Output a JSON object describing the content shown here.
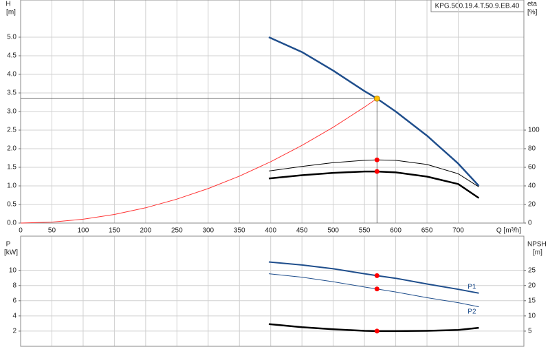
{
  "chart_data": [
    {
      "type": "line",
      "title": "KPG.500.19.4.T.50.9.EB.40",
      "ylabel": "H",
      "yunit": "[m]",
      "y2label": "eta",
      "y2unit": "[%]",
      "xlabel": "Q [m³/h]",
      "xlim": [
        0,
        805
      ],
      "xticks": [
        0,
        50,
        100,
        150,
        200,
        250,
        300,
        350,
        400,
        450,
        500,
        550,
        600,
        650,
        700
      ],
      "ylim": [
        0,
        6
      ],
      "yticks": [
        {
          "value": 0,
          "label": "0.0"
        },
        {
          "value": 0.5,
          "label": "0.5"
        },
        {
          "value": 1,
          "label": "1.0"
        },
        {
          "value": 1.5,
          "label": "1.5"
        },
        {
          "value": 2,
          "label": "2.0"
        },
        {
          "value": 2.5,
          "label": "2.5"
        },
        {
          "value": 3,
          "label": "3.0"
        },
        {
          "value": 3.5,
          "label": "3.5"
        },
        {
          "value": 4,
          "label": "4.0"
        },
        {
          "value": 4.5,
          "label": "4.5"
        },
        {
          "value": 5,
          "label": "5.0"
        }
      ],
      "y2lim": [
        0,
        240
      ],
      "y2ticks": [
        0,
        20,
        40,
        60,
        80,
        100
      ],
      "grid": true,
      "series": [
        {
          "color": "#1f4e8c",
          "line_width": 2.5,
          "x": [
            397,
            450,
            500,
            550,
            570,
            600,
            650,
            700,
            733
          ],
          "values": [
            5.0,
            4.6,
            4.1,
            3.55,
            3.35,
            3.0,
            2.35,
            1.6,
            1.0
          ]
        },
        {
          "color": "#ff3333",
          "line_width": 1,
          "x": [
            0,
            50,
            100,
            150,
            200,
            250,
            300,
            350,
            400,
            450,
            500,
            550,
            570
          ],
          "values": [
            0,
            0.026,
            0.103,
            0.232,
            0.412,
            0.644,
            0.928,
            1.263,
            1.65,
            2.088,
            2.578,
            3.119,
            3.35
          ]
        },
        {
          "color": "#000000",
          "line_width": 1,
          "axis": "y2",
          "x": [
            397,
            450,
            500,
            550,
            570,
            600,
            650,
            700,
            733
          ],
          "values": [
            56,
            61,
            65,
            67.5,
            68,
            67.5,
            63,
            53,
            39
          ]
        },
        {
          "color": "#000000",
          "line_width": 2.5,
          "axis": "y2",
          "x": [
            397,
            450,
            500,
            550,
            570,
            600,
            650,
            700,
            733
          ],
          "values": [
            48,
            51.5,
            54,
            55.5,
            55.5,
            54.5,
            50,
            42,
            27
          ]
        }
      ],
      "marker_color": "#ff0000",
      "markers": [
        {
          "x": 570,
          "y": 68,
          "axis": "y2"
        },
        {
          "x": 570,
          "y": 55.5,
          "axis": "y2"
        }
      ],
      "duty_point": {
        "x": 570,
        "y": 3.35,
        "color": "#ffc000"
      }
    },
    {
      "type": "line",
      "ylabel": "P",
      "yunit": "[kW]",
      "y2label": "NPSH",
      "y2unit": "[m]",
      "xlim": [
        0,
        805
      ],
      "ylim": [
        0,
        14.5
      ],
      "yticks": [
        2,
        4,
        6,
        8,
        10
      ],
      "y2lim": [
        0,
        36.25
      ],
      "y2ticks": [
        5,
        10,
        15,
        20,
        25
      ],
      "grid": true,
      "series": [
        {
          "name": "P1",
          "color": "#1f4e8c",
          "line_width": 2,
          "x": [
            397,
            450,
            500,
            550,
            570,
            600,
            650,
            700,
            733
          ],
          "values": [
            11.1,
            10.7,
            10.2,
            9.55,
            9.3,
            8.95,
            8.2,
            7.5,
            7.0
          ]
        },
        {
          "name": "P2",
          "color": "#1f4e8c",
          "line_width": 1,
          "x": [
            397,
            450,
            500,
            550,
            570,
            600,
            650,
            700,
            733
          ],
          "values": [
            9.55,
            9.1,
            8.5,
            7.8,
            7.55,
            7.15,
            6.4,
            5.75,
            5.2
          ]
        },
        {
          "color": "#000000",
          "line_width": 2.5,
          "axis": "y2",
          "x": [
            397,
            450,
            500,
            550,
            570,
            600,
            650,
            700,
            733
          ],
          "values": [
            7.3,
            6.3,
            5.6,
            5.1,
            5.0,
            5.0,
            5.1,
            5.4,
            6.1
          ]
        }
      ],
      "marker_color": "#ff0000",
      "markers": [
        {
          "x": 570,
          "y": 9.3
        },
        {
          "x": 570,
          "y": 7.55
        },
        {
          "x": 570,
          "y": 5.0,
          "axis": "y2"
        }
      ]
    }
  ]
}
